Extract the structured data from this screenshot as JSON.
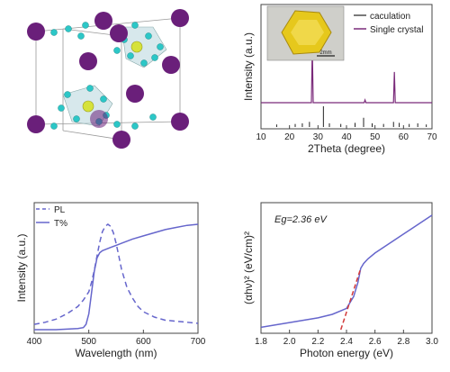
{
  "colors": {
    "calc": "#222222",
    "crystal": "#7a2a7a",
    "pl": "#6666cc",
    "trans": "#6666cc",
    "fit": "#d23a3a",
    "atom_large": "#6a1f7a",
    "atom_small": "#2cc7c7",
    "atom_center": "#d6e23a",
    "octahedron": "#bcd8df"
  },
  "chart_data": [
    {
      "id": "xrd",
      "type": "line",
      "xlabel": "2Theta (degree)",
      "ylabel": "Intensity (a.u.)",
      "xlim": [
        10,
        70
      ],
      "x_ticks": [
        10,
        20,
        30,
        40,
        50,
        60,
        70
      ],
      "legend": {
        "placement": "top-right",
        "entries": [
          "caculation",
          "Single crystal"
        ]
      },
      "inset_scale_label": "2mm",
      "series": [
        {
          "name": "Single crystal",
          "baseline": 0.0,
          "peaks": [
            {
              "x": 28.0,
              "h": 1.0
            },
            {
              "x": 46.5,
              "h": 0.05
            },
            {
              "x": 56.8,
              "h": 0.55
            }
          ]
        },
        {
          "name": "caculation",
          "peaks": [
            {
              "x": 15.5,
              "h": 0.12
            },
            {
              "x": 22.0,
              "h": 0.15
            },
            {
              "x": 24.5,
              "h": 0.18
            },
            {
              "x": 27.0,
              "h": 0.25
            },
            {
              "x": 31.9,
              "h": 1.0
            },
            {
              "x": 34.0,
              "h": 0.18
            },
            {
              "x": 38.0,
              "h": 0.15
            },
            {
              "x": 43.0,
              "h": 0.2
            },
            {
              "x": 46.0,
              "h": 0.45
            },
            {
              "x": 49.0,
              "h": 0.18
            },
            {
              "x": 53.0,
              "h": 0.15
            },
            {
              "x": 56.5,
              "h": 0.25
            },
            {
              "x": 58.5,
              "h": 0.2
            },
            {
              "x": 62.0,
              "h": 0.15
            },
            {
              "x": 65.0,
              "h": 0.18
            },
            {
              "x": 68.0,
              "h": 0.12
            }
          ]
        }
      ]
    },
    {
      "id": "pl",
      "type": "line",
      "xlabel": "Wavelength (nm)",
      "ylabel": "Intensity (a.u.)",
      "xlim": [
        400,
        700
      ],
      "ylim": [
        0,
        1
      ],
      "x_ticks": [
        400,
        500,
        600,
        700
      ],
      "legend": {
        "placement": "top-left",
        "entries": [
          "PL",
          "T%"
        ]
      },
      "series": [
        {
          "name": "PL",
          "style": "dashed",
          "x": [
            400,
            420,
            440,
            460,
            480,
            490,
            500,
            505,
            510,
            515,
            520,
            525,
            530,
            535,
            540,
            545,
            550,
            555,
            560,
            570,
            580,
            590,
            600,
            620,
            640,
            660,
            680,
            700
          ],
          "y": [
            0.05,
            0.07,
            0.1,
            0.15,
            0.22,
            0.28,
            0.36,
            0.45,
            0.56,
            0.7,
            0.83,
            0.93,
            0.98,
            1.0,
            0.98,
            0.92,
            0.82,
            0.7,
            0.57,
            0.4,
            0.3,
            0.22,
            0.17,
            0.12,
            0.09,
            0.08,
            0.07,
            0.06
          ]
        },
        {
          "name": "T%",
          "style": "solid",
          "x": [
            400,
            440,
            480,
            490,
            495,
            500,
            505,
            510,
            515,
            520,
            525,
            530,
            540,
            550,
            560,
            580,
            600,
            620,
            640,
            660,
            680,
            700
          ],
          "y": [
            0.0,
            0.0,
            0.01,
            0.02,
            0.05,
            0.15,
            0.35,
            0.55,
            0.68,
            0.73,
            0.75,
            0.76,
            0.78,
            0.8,
            0.82,
            0.86,
            0.89,
            0.92,
            0.95,
            0.97,
            0.99,
            1.0
          ]
        }
      ]
    },
    {
      "id": "tauc",
      "type": "line",
      "xlabel": "Photon energy (eV)",
      "ylabel": "(αhν)² (eV/cm)²",
      "xlim": [
        1.8,
        3.0
      ],
      "ylim": [
        0,
        1
      ],
      "x_ticks": [
        1.8,
        2.0,
        2.2,
        2.4,
        2.6,
        2.8,
        3.0
      ],
      "annotation": "Eg=2.36 eV",
      "series": [
        {
          "name": "Tauc",
          "style": "solid",
          "x": [
            1.8,
            1.9,
            2.0,
            2.1,
            2.2,
            2.3,
            2.4,
            2.45,
            2.48,
            2.5,
            2.52,
            2.55,
            2.6,
            2.7,
            2.8,
            2.9,
            3.0
          ],
          "y": [
            0.02,
            0.04,
            0.06,
            0.08,
            0.1,
            0.13,
            0.18,
            0.28,
            0.4,
            0.52,
            0.56,
            0.6,
            0.65,
            0.73,
            0.81,
            0.89,
            0.97
          ]
        },
        {
          "name": "fit",
          "style": "dashed",
          "x": [
            2.36,
            2.5
          ],
          "y": [
            0.0,
            0.52
          ]
        }
      ]
    }
  ]
}
